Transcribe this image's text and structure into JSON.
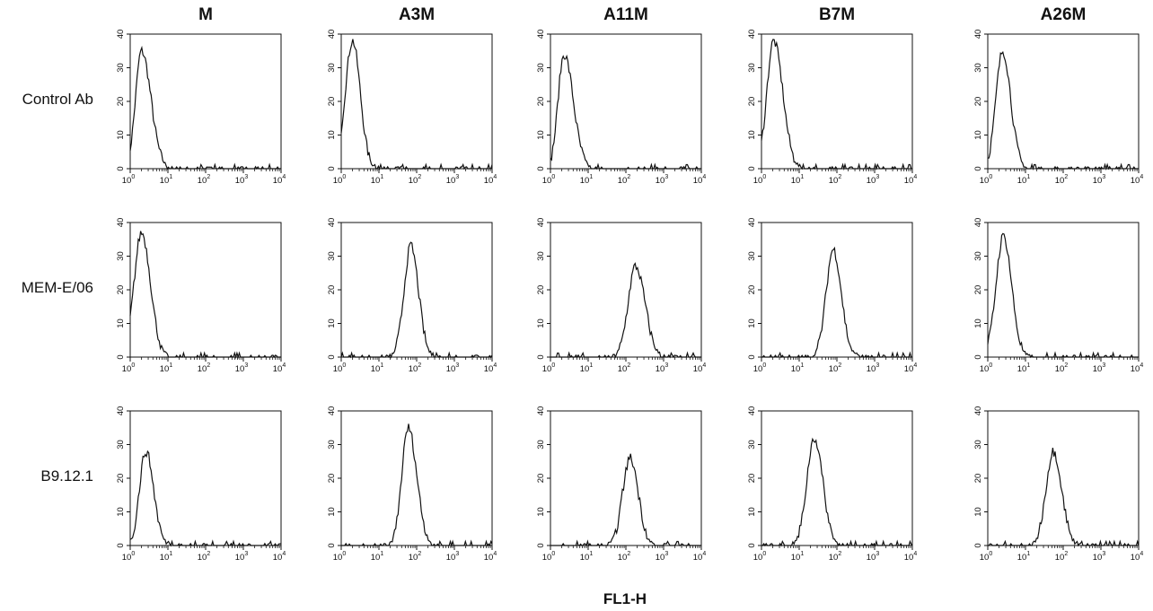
{
  "figure": {
    "columns": [
      "M",
      "A3M",
      "A11M",
      "B7M",
      "A26M"
    ],
    "rows": [
      "Control Ab",
      "MEM-E/06",
      "B9.12.1"
    ],
    "x_axis_title": "FL1-H"
  },
  "axes": {
    "x_scale": "log",
    "x_range": [
      1,
      10000
    ],
    "x_tick_base": "10",
    "x_tick_exponents": [
      "0",
      "1",
      "2",
      "3",
      "4"
    ],
    "y_range": [
      0,
      40
    ],
    "y_ticks": [
      "0",
      "10",
      "20",
      "30",
      "40"
    ],
    "grid": false
  },
  "chart_data": [
    {
      "type": "line",
      "row": "Control Ab",
      "column": "M",
      "peak_fl1": 2.0,
      "peak_count": 35,
      "x_scale": "log",
      "xlim": [
        1,
        10000
      ],
      "ylim": [
        0,
        40
      ]
    },
    {
      "type": "line",
      "row": "Control Ab",
      "column": "A3M",
      "peak_fl1": 2.0,
      "peak_count": 38,
      "x_scale": "log",
      "xlim": [
        1,
        10000
      ],
      "ylim": [
        0,
        40
      ]
    },
    {
      "type": "line",
      "row": "Control Ab",
      "column": "A11M",
      "peak_fl1": 2.3,
      "peak_count": 34,
      "x_scale": "log",
      "xlim": [
        1,
        10000
      ],
      "ylim": [
        0,
        40
      ]
    },
    {
      "type": "line",
      "row": "Control Ab",
      "column": "B7M",
      "peak_fl1": 2.1,
      "peak_count": 38,
      "x_scale": "log",
      "xlim": [
        1,
        10000
      ],
      "ylim": [
        0,
        40
      ]
    },
    {
      "type": "line",
      "row": "Control Ab",
      "column": "A26M",
      "peak_fl1": 2.5,
      "peak_count": 35,
      "x_scale": "log",
      "xlim": [
        1,
        10000
      ],
      "ylim": [
        0,
        40
      ]
    },
    {
      "type": "line",
      "row": "MEM-E/06",
      "column": "M",
      "peak_fl1": 2.0,
      "peak_count": 37,
      "x_scale": "log",
      "xlim": [
        1,
        10000
      ],
      "ylim": [
        0,
        40
      ]
    },
    {
      "type": "line",
      "row": "MEM-E/06",
      "column": "A3M",
      "peak_fl1": 70,
      "peak_count": 33,
      "x_scale": "log",
      "xlim": [
        1,
        10000
      ],
      "ylim": [
        0,
        40
      ]
    },
    {
      "type": "line",
      "row": "MEM-E/06",
      "column": "A11M",
      "peak_fl1": 180,
      "peak_count": 27,
      "x_scale": "log",
      "xlim": [
        1,
        10000
      ],
      "ylim": [
        0,
        40
      ]
    },
    {
      "type": "line",
      "row": "MEM-E/06",
      "column": "B7M",
      "peak_fl1": 80,
      "peak_count": 32,
      "x_scale": "log",
      "xlim": [
        1,
        10000
      ],
      "ylim": [
        0,
        40
      ]
    },
    {
      "type": "line",
      "row": "MEM-E/06",
      "column": "A26M",
      "peak_fl1": 2.6,
      "peak_count": 36,
      "x_scale": "log",
      "xlim": [
        1,
        10000
      ],
      "ylim": [
        0,
        40
      ]
    },
    {
      "type": "line",
      "row": "B9.12.1",
      "column": "M",
      "peak_fl1": 2.6,
      "peak_count": 28,
      "x_scale": "log",
      "xlim": [
        1,
        10000
      ],
      "ylim": [
        0,
        40
      ]
    },
    {
      "type": "line",
      "row": "B9.12.1",
      "column": "A3M",
      "peak_fl1": 60,
      "peak_count": 35,
      "x_scale": "log",
      "xlim": [
        1,
        10000
      ],
      "ylim": [
        0,
        40
      ]
    },
    {
      "type": "line",
      "row": "B9.12.1",
      "column": "A11M",
      "peak_fl1": 130,
      "peak_count": 26,
      "x_scale": "log",
      "xlim": [
        1,
        10000
      ],
      "ylim": [
        0,
        40
      ]
    },
    {
      "type": "line",
      "row": "B9.12.1",
      "column": "B7M",
      "peak_fl1": 25,
      "peak_count": 32,
      "x_scale": "log",
      "xlim": [
        1,
        10000
      ],
      "ylim": [
        0,
        40
      ]
    },
    {
      "type": "line",
      "row": "B9.12.1",
      "column": "A26M",
      "peak_fl1": 55,
      "peak_count": 28,
      "x_scale": "log",
      "xlim": [
        1,
        10000
      ],
      "ylim": [
        0,
        40
      ]
    }
  ]
}
